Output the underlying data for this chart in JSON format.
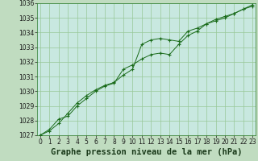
{
  "title": "Graphe pression niveau de la mer (hPa)",
  "background_color": "#c0dcc0",
  "plot_bg_color": "#c8e8e0",
  "grid_color": "#98c898",
  "line_color": "#1a6b1a",
  "marker_color": "#1a6b1a",
  "x_hours": [
    0,
    1,
    2,
    3,
    4,
    5,
    6,
    7,
    8,
    9,
    10,
    11,
    12,
    13,
    14,
    15,
    16,
    17,
    18,
    19,
    20,
    21,
    22,
    23
  ],
  "line1": [
    1027.0,
    1027.3,
    1027.8,
    1028.5,
    1029.2,
    1029.7,
    1030.1,
    1030.4,
    1030.6,
    1031.1,
    1031.5,
    1033.2,
    1033.5,
    1033.6,
    1033.5,
    1033.4,
    1034.1,
    1034.3,
    1034.6,
    1034.9,
    1035.1,
    1035.3,
    1035.6,
    1035.8
  ],
  "line2": [
    1027.0,
    1027.4,
    1028.1,
    1028.3,
    1029.0,
    1029.5,
    1030.0,
    1030.35,
    1030.55,
    1031.5,
    1031.8,
    1032.2,
    1032.5,
    1032.6,
    1032.5,
    1033.2,
    1033.8,
    1034.1,
    1034.6,
    1034.8,
    1035.0,
    1035.3,
    1035.6,
    1035.9
  ],
  "ylim": [
    1027,
    1036
  ],
  "yticks": [
    1027,
    1028,
    1029,
    1030,
    1031,
    1032,
    1033,
    1034,
    1035,
    1036
  ],
  "xticks": [
    0,
    1,
    2,
    3,
    4,
    5,
    6,
    7,
    8,
    9,
    10,
    11,
    12,
    13,
    14,
    15,
    16,
    17,
    18,
    19,
    20,
    21,
    22,
    23
  ],
  "tick_fontsize": 5.5,
  "title_fontsize": 7.5
}
